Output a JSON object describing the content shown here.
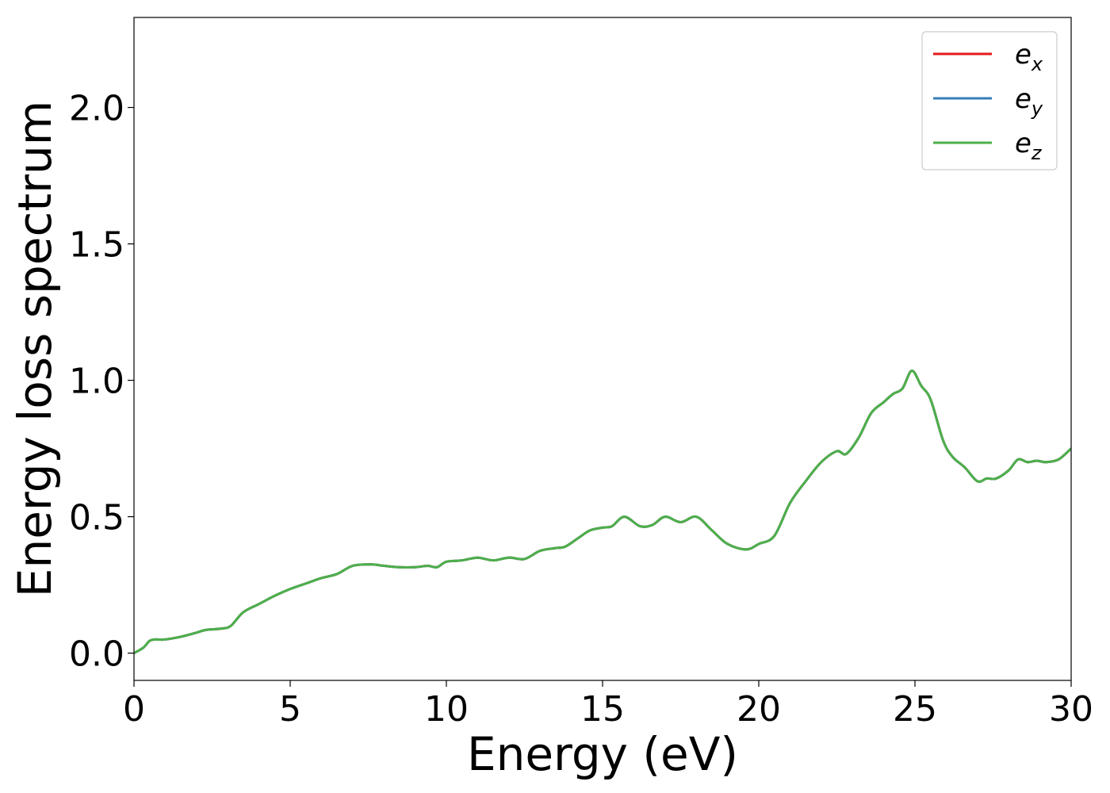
{
  "chart_data": {
    "type": "line",
    "xlabel": "Energy (eV)",
    "ylabel": "Energy loss spectrum",
    "xlim": [
      0,
      30
    ],
    "ylim": [
      -0.1,
      2.33
    ],
    "xticks": [
      0,
      5,
      10,
      15,
      20,
      25,
      30
    ],
    "xtick_labels": [
      "0",
      "5",
      "10",
      "15",
      "20",
      "25",
      "30"
    ],
    "yticks": [
      0.0,
      0.5,
      1.0,
      1.5,
      2.0
    ],
    "ytick_labels": [
      "0.0",
      "0.5",
      "1.0",
      "1.5",
      "2.0"
    ],
    "grid": false,
    "legend_position": "top-right",
    "x": [
      0,
      0.3,
      0.5,
      0.7,
      1.0,
      1.5,
      2.0,
      2.3,
      2.8,
      3.1,
      3.5,
      4.0,
      4.5,
      5.0,
      5.5,
      6.0,
      6.5,
      7.0,
      7.6,
      8.0,
      8.5,
      9.0,
      9.4,
      9.7,
      10.0,
      10.5,
      11.0,
      11.5,
      12.0,
      12.5,
      13.0,
      13.5,
      13.8,
      14.2,
      14.6,
      15.0,
      15.3,
      15.7,
      16.2,
      16.6,
      17.0,
      17.5,
      18.0,
      18.5,
      19.0,
      19.6,
      20.0,
      20.5,
      21.0,
      21.5,
      22.0,
      22.5,
      22.8,
      23.2,
      23.6,
      24.0,
      24.3,
      24.6,
      24.9,
      25.2,
      25.5,
      25.9,
      26.2,
      26.6,
      27.0,
      27.3,
      27.6,
      28.0,
      28.3,
      28.6,
      28.9,
      29.2,
      29.6,
      30.0
    ],
    "series": [
      {
        "name": "e_x",
        "color": "#e41a1c",
        "values": [
          0.0,
          0.02,
          0.045,
          0.05,
          0.05,
          0.06,
          0.075,
          0.085,
          0.09,
          0.1,
          0.15,
          0.18,
          0.21,
          0.235,
          0.255,
          0.275,
          0.29,
          0.32,
          0.325,
          0.32,
          0.315,
          0.315,
          0.32,
          0.315,
          0.335,
          0.34,
          0.35,
          0.34,
          0.35,
          0.345,
          0.375,
          0.385,
          0.39,
          0.42,
          0.45,
          0.46,
          0.465,
          0.5,
          0.465,
          0.47,
          0.5,
          0.48,
          0.5,
          0.45,
          0.4,
          0.38,
          0.4,
          0.43,
          0.55,
          0.63,
          0.7,
          0.74,
          0.73,
          0.79,
          0.88,
          0.92,
          0.95,
          0.97,
          1.035,
          0.98,
          0.93,
          0.78,
          0.72,
          0.68,
          0.63,
          0.64,
          0.64,
          0.67,
          0.71,
          0.7,
          0.705,
          0.7,
          0.71,
          0.75
        ]
      },
      {
        "name": "e_y",
        "color": "#377eb8",
        "values": [
          0.0,
          0.02,
          0.045,
          0.05,
          0.05,
          0.06,
          0.075,
          0.085,
          0.09,
          0.1,
          0.15,
          0.18,
          0.21,
          0.235,
          0.255,
          0.275,
          0.29,
          0.32,
          0.325,
          0.32,
          0.315,
          0.315,
          0.32,
          0.315,
          0.335,
          0.34,
          0.35,
          0.34,
          0.35,
          0.345,
          0.375,
          0.385,
          0.39,
          0.42,
          0.45,
          0.46,
          0.465,
          0.5,
          0.465,
          0.47,
          0.5,
          0.48,
          0.5,
          0.45,
          0.4,
          0.38,
          0.4,
          0.43,
          0.55,
          0.63,
          0.7,
          0.74,
          0.73,
          0.79,
          0.88,
          0.92,
          0.95,
          0.97,
          1.035,
          0.98,
          0.93,
          0.78,
          0.72,
          0.68,
          0.63,
          0.64,
          0.64,
          0.67,
          0.71,
          0.7,
          0.705,
          0.7,
          0.71,
          0.75
        ]
      },
      {
        "name": "e_z",
        "color": "#4daf4a",
        "values": [
          0.0,
          0.02,
          0.045,
          0.05,
          0.05,
          0.06,
          0.075,
          0.085,
          0.09,
          0.1,
          0.15,
          0.18,
          0.21,
          0.235,
          0.255,
          0.275,
          0.29,
          0.32,
          0.325,
          0.32,
          0.315,
          0.315,
          0.32,
          0.315,
          0.335,
          0.34,
          0.35,
          0.34,
          0.35,
          0.345,
          0.375,
          0.385,
          0.39,
          0.42,
          0.45,
          0.46,
          0.465,
          0.5,
          0.465,
          0.47,
          0.5,
          0.48,
          0.5,
          0.45,
          0.4,
          0.38,
          0.4,
          0.43,
          0.55,
          0.63,
          0.7,
          0.74,
          0.73,
          0.79,
          0.88,
          0.92,
          0.95,
          0.97,
          1.035,
          0.98,
          0.93,
          0.78,
          0.72,
          0.68,
          0.63,
          0.64,
          0.64,
          0.67,
          0.71,
          0.7,
          0.705,
          0.7,
          0.71,
          0.75
        ]
      }
    ],
    "legend": [
      {
        "base": "e",
        "sub": "x",
        "color": "#e41a1c"
      },
      {
        "base": "e",
        "sub": "y",
        "color": "#377eb8"
      },
      {
        "base": "e",
        "sub": "z",
        "color": "#4daf4a"
      }
    ]
  }
}
